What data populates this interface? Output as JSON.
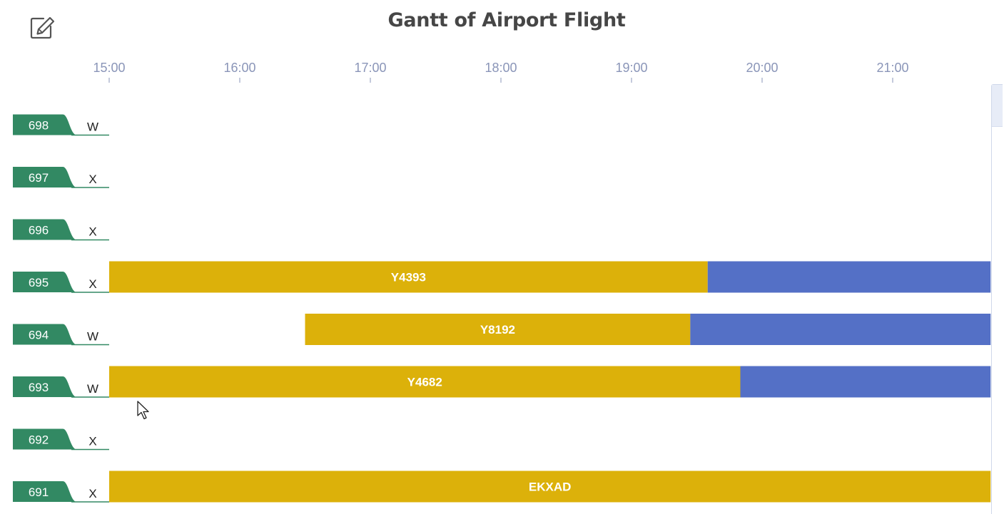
{
  "title": "Gantt of Airport Flight",
  "toolbox": {
    "icon": "edit-icon"
  },
  "colors": {
    "gate_tag": "#328963",
    "gate_text": "#ffffff",
    "occupied": "#dcb10a",
    "remaining": "#5470c6",
    "bar_text": "#ffffff",
    "axis_label": "#8a95b8",
    "row_label": "#222222"
  },
  "chart_data": {
    "type": "gantt",
    "title": "Gantt of Airport Flight",
    "x_axis": {
      "ticks": [
        "15:00",
        "16:00",
        "17:00",
        "18:00",
        "19:00",
        "20:00",
        "21:00"
      ],
      "range": [
        "15:00",
        "21:45"
      ],
      "position": "top"
    },
    "rows": [
      {
        "gate": "698",
        "type": "W",
        "bars": []
      },
      {
        "gate": "697",
        "type": "X",
        "bars": []
      },
      {
        "gate": "696",
        "type": "X",
        "bars": []
      },
      {
        "gate": "695",
        "type": "X",
        "bars": [
          {
            "flight": "Y4393",
            "start": "15:00",
            "split": "19:35",
            "end": "21:45"
          }
        ]
      },
      {
        "gate": "694",
        "type": "W",
        "bars": [
          {
            "flight": "Y8192",
            "start": "16:30",
            "split": "19:27",
            "end": "21:45"
          }
        ]
      },
      {
        "gate": "693",
        "type": "W",
        "bars": [
          {
            "flight": "Y4682",
            "start": "15:00",
            "split": "19:50",
            "end": "21:45"
          }
        ]
      },
      {
        "gate": "692",
        "type": "X",
        "bars": []
      },
      {
        "gate": "691",
        "type": "X",
        "bars": [
          {
            "flight": "EKXAD",
            "start": "15:00",
            "split": "21:45",
            "end": "21:45"
          }
        ]
      }
    ],
    "grid": false,
    "legend": "none"
  }
}
